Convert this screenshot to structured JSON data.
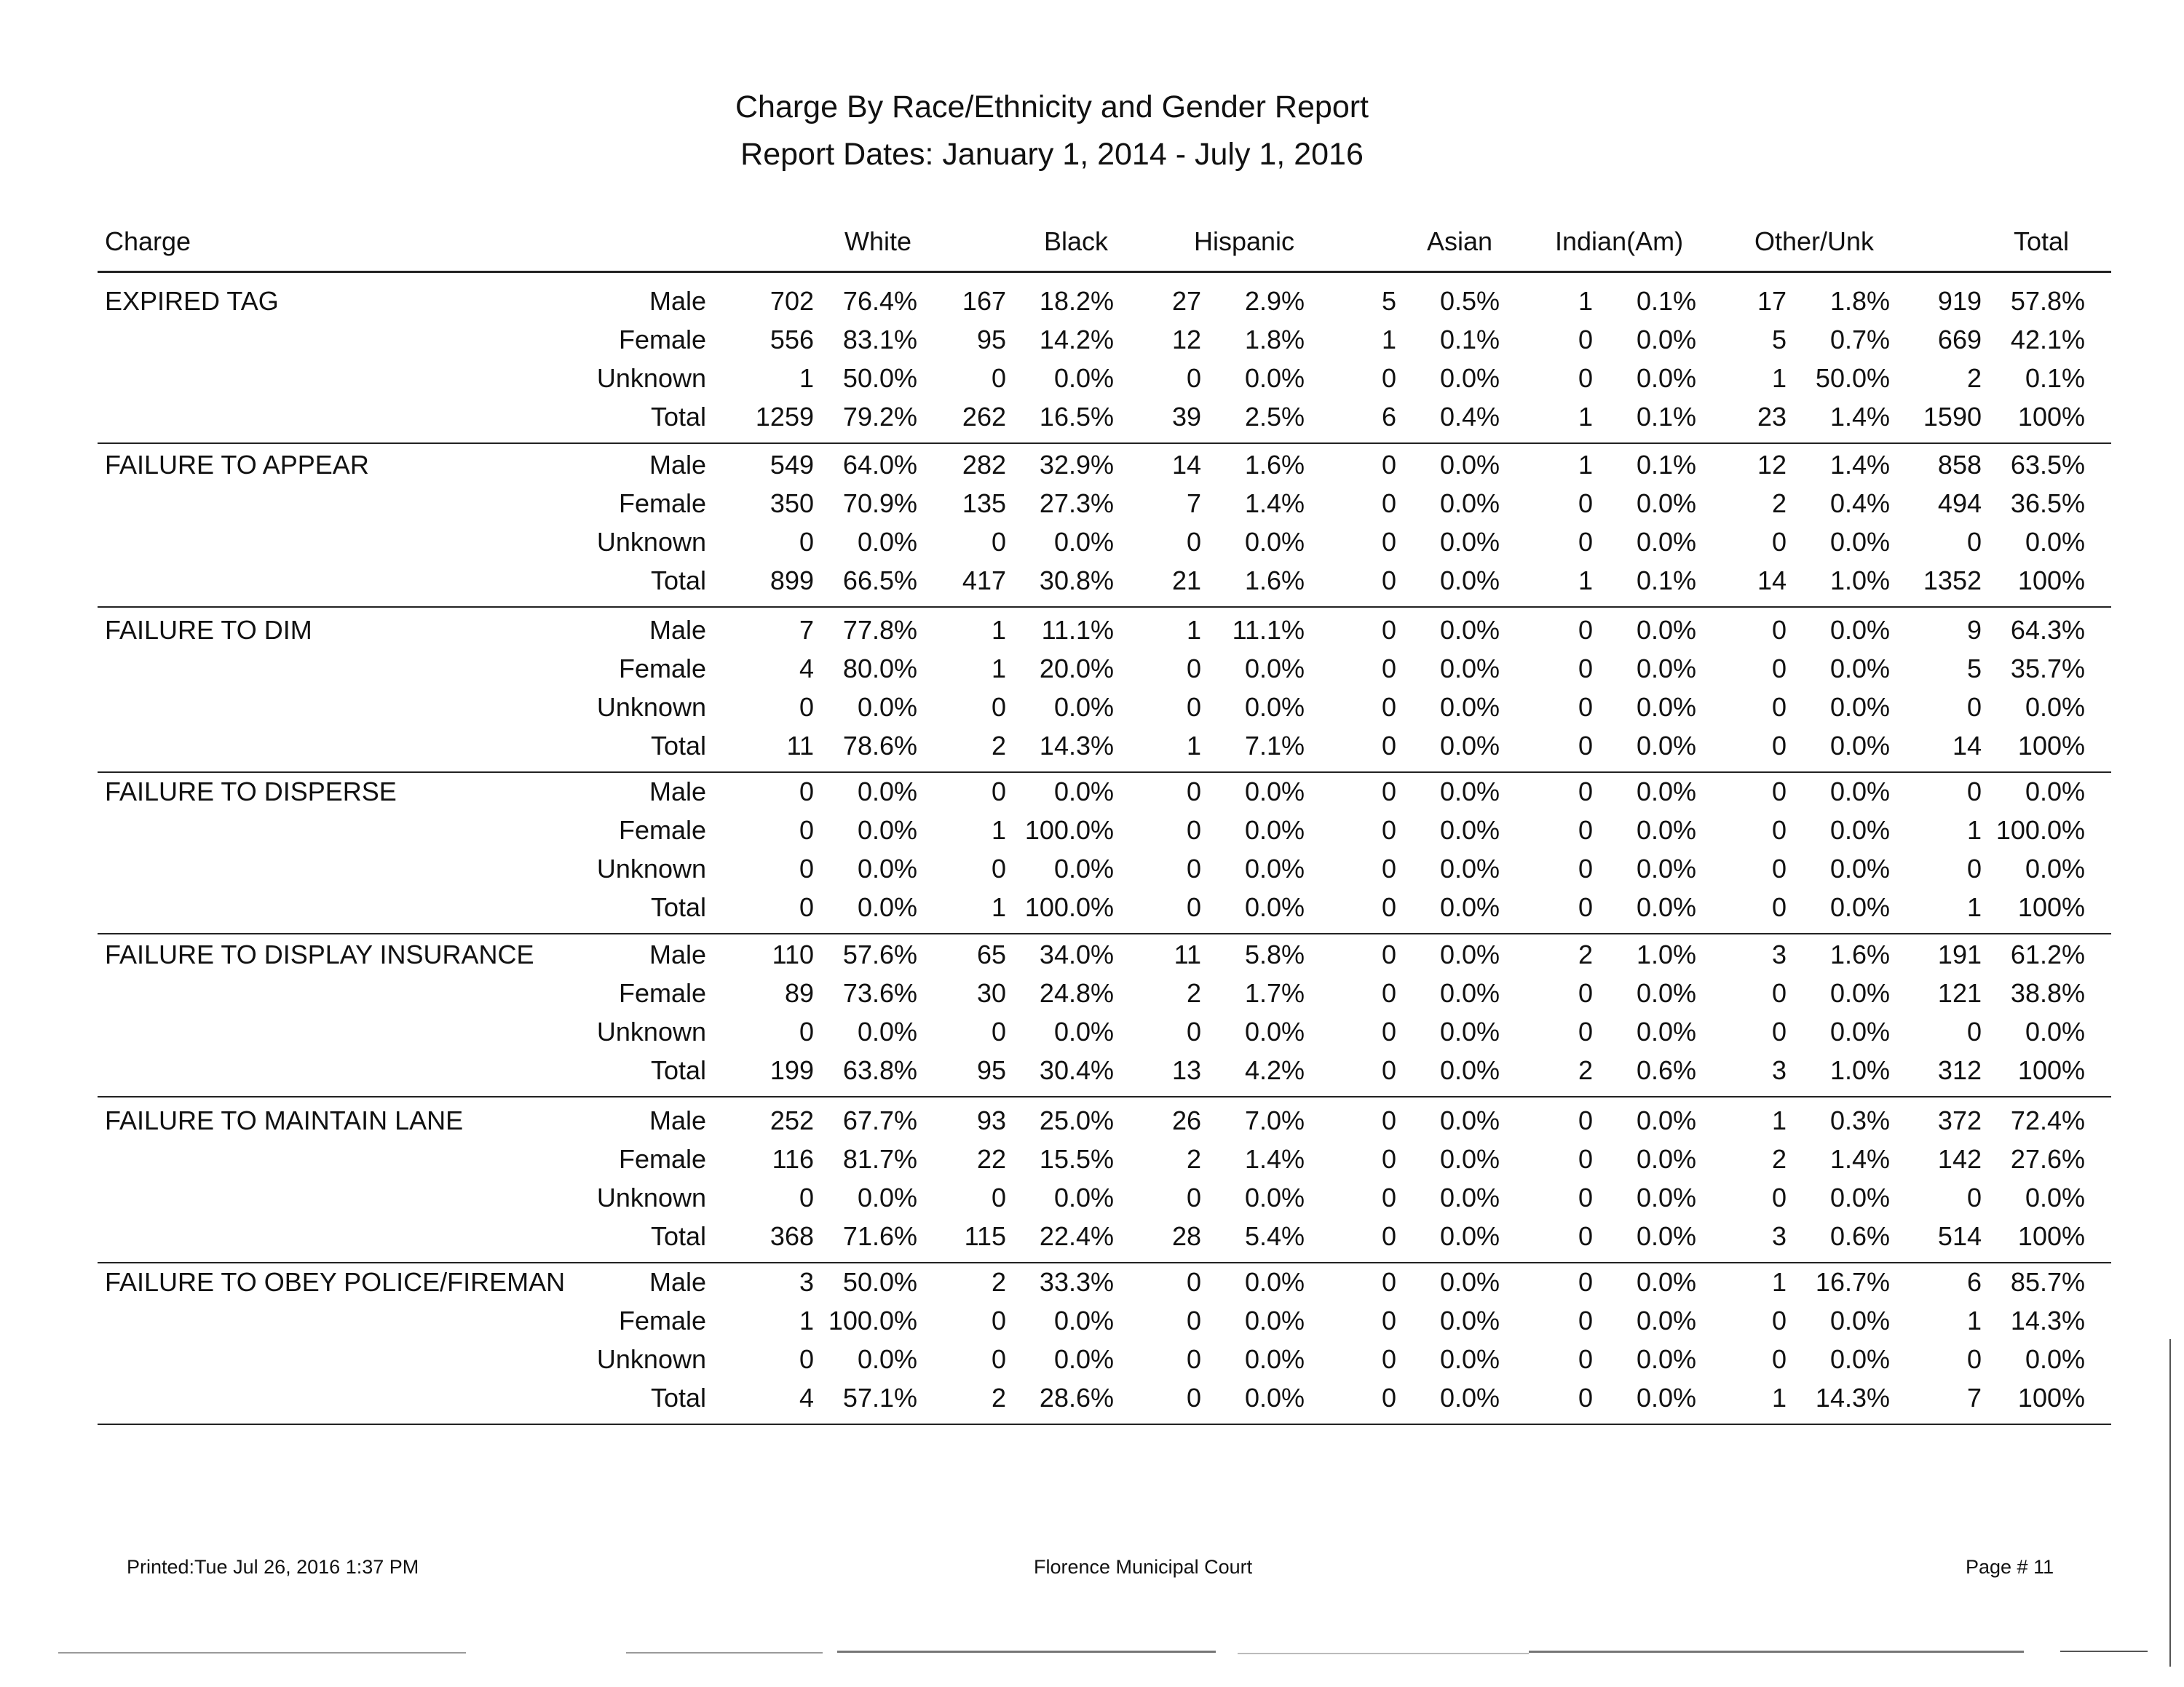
{
  "report": {
    "title": "Charge By Race/Ethnicity and Gender Report",
    "date_range": "Report Dates: January 1, 2014  -  July 1, 2016"
  },
  "columns": {
    "charge": "Charge",
    "white": "White",
    "black": "Black",
    "hispanic": "Hispanic",
    "asian": "Asian",
    "indian": "Indian(Am)",
    "other": "Other/Unk",
    "total": "Total"
  },
  "groups": [
    {
      "charge": "EXPIRED TAG",
      "rows": [
        {
          "gender": "Male",
          "cells": [
            "702",
            "76.4%",
            "167",
            "18.2%",
            "27",
            "2.9%",
            "5",
            "0.5%",
            "1",
            "0.1%",
            "17",
            "1.8%",
            "919",
            "57.8%"
          ]
        },
        {
          "gender": "Female",
          "cells": [
            "556",
            "83.1%",
            "95",
            "14.2%",
            "12",
            "1.8%",
            "1",
            "0.1%",
            "0",
            "0.0%",
            "5",
            "0.7%",
            "669",
            "42.1%"
          ]
        },
        {
          "gender": "Unknown",
          "cells": [
            "1",
            "50.0%",
            "0",
            "0.0%",
            "0",
            "0.0%",
            "0",
            "0.0%",
            "0",
            "0.0%",
            "1",
            "50.0%",
            "2",
            "0.1%"
          ]
        },
        {
          "gender": "Total",
          "cells": [
            "1259",
            "79.2%",
            "262",
            "16.5%",
            "39",
            "2.5%",
            "6",
            "0.4%",
            "1",
            "0.1%",
            "23",
            "1.4%",
            "1590",
            "100%"
          ]
        }
      ]
    },
    {
      "charge": "FAILURE TO APPEAR",
      "rows": [
        {
          "gender": "Male",
          "cells": [
            "549",
            "64.0%",
            "282",
            "32.9%",
            "14",
            "1.6%",
            "0",
            "0.0%",
            "1",
            "0.1%",
            "12",
            "1.4%",
            "858",
            "63.5%"
          ]
        },
        {
          "gender": "Female",
          "cells": [
            "350",
            "70.9%",
            "135",
            "27.3%",
            "7",
            "1.4%",
            "0",
            "0.0%",
            "0",
            "0.0%",
            "2",
            "0.4%",
            "494",
            "36.5%"
          ]
        },
        {
          "gender": "Unknown",
          "cells": [
            "0",
            "0.0%",
            "0",
            "0.0%",
            "0",
            "0.0%",
            "0",
            "0.0%",
            "0",
            "0.0%",
            "0",
            "0.0%",
            "0",
            "0.0%"
          ]
        },
        {
          "gender": "Total",
          "cells": [
            "899",
            "66.5%",
            "417",
            "30.8%",
            "21",
            "1.6%",
            "0",
            "0.0%",
            "1",
            "0.1%",
            "14",
            "1.0%",
            "1352",
            "100%"
          ]
        }
      ]
    },
    {
      "charge": "FAILURE TO DIM",
      "rows": [
        {
          "gender": "Male",
          "cells": [
            "7",
            "77.8%",
            "1",
            "11.1%",
            "1",
            "11.1%",
            "0",
            "0.0%",
            "0",
            "0.0%",
            "0",
            "0.0%",
            "9",
            "64.3%"
          ]
        },
        {
          "gender": "Female",
          "cells": [
            "4",
            "80.0%",
            "1",
            "20.0%",
            "0",
            "0.0%",
            "0",
            "0.0%",
            "0",
            "0.0%",
            "0",
            "0.0%",
            "5",
            "35.7%"
          ]
        },
        {
          "gender": "Unknown",
          "cells": [
            "0",
            "0.0%",
            "0",
            "0.0%",
            "0",
            "0.0%",
            "0",
            "0.0%",
            "0",
            "0.0%",
            "0",
            "0.0%",
            "0",
            "0.0%"
          ]
        },
        {
          "gender": "Total",
          "cells": [
            "11",
            "78.6%",
            "2",
            "14.3%",
            "1",
            "7.1%",
            "0",
            "0.0%",
            "0",
            "0.0%",
            "0",
            "0.0%",
            "14",
            "100%"
          ]
        }
      ]
    },
    {
      "charge": "FAILURE TO DISPERSE",
      "rows": [
        {
          "gender": "Male",
          "cells": [
            "0",
            "0.0%",
            "0",
            "0.0%",
            "0",
            "0.0%",
            "0",
            "0.0%",
            "0",
            "0.0%",
            "0",
            "0.0%",
            "0",
            "0.0%"
          ]
        },
        {
          "gender": "Female",
          "cells": [
            "0",
            "0.0%",
            "1",
            "100.0%",
            "0",
            "0.0%",
            "0",
            "0.0%",
            "0",
            "0.0%",
            "0",
            "0.0%",
            "1",
            "100.0%"
          ]
        },
        {
          "gender": "Unknown",
          "cells": [
            "0",
            "0.0%",
            "0",
            "0.0%",
            "0",
            "0.0%",
            "0",
            "0.0%",
            "0",
            "0.0%",
            "0",
            "0.0%",
            "0",
            "0.0%"
          ]
        },
        {
          "gender": "Total",
          "cells": [
            "0",
            "0.0%",
            "1",
            "100.0%",
            "0",
            "0.0%",
            "0",
            "0.0%",
            "0",
            "0.0%",
            "0",
            "0.0%",
            "1",
            "100%"
          ]
        }
      ]
    },
    {
      "charge": "FAILURE TO DISPLAY INSURANCE",
      "rows": [
        {
          "gender": "Male",
          "cells": [
            "110",
            "57.6%",
            "65",
            "34.0%",
            "11",
            "5.8%",
            "0",
            "0.0%",
            "2",
            "1.0%",
            "3",
            "1.6%",
            "191",
            "61.2%"
          ]
        },
        {
          "gender": "Female",
          "cells": [
            "89",
            "73.6%",
            "30",
            "24.8%",
            "2",
            "1.7%",
            "0",
            "0.0%",
            "0",
            "0.0%",
            "0",
            "0.0%",
            "121",
            "38.8%"
          ]
        },
        {
          "gender": "Unknown",
          "cells": [
            "0",
            "0.0%",
            "0",
            "0.0%",
            "0",
            "0.0%",
            "0",
            "0.0%",
            "0",
            "0.0%",
            "0",
            "0.0%",
            "0",
            "0.0%"
          ]
        },
        {
          "gender": "Total",
          "cells": [
            "199",
            "63.8%",
            "95",
            "30.4%",
            "13",
            "4.2%",
            "0",
            "0.0%",
            "2",
            "0.6%",
            "3",
            "1.0%",
            "312",
            "100%"
          ]
        }
      ]
    },
    {
      "charge": "FAILURE TO MAINTAIN LANE",
      "rows": [
        {
          "gender": "Male",
          "cells": [
            "252",
            "67.7%",
            "93",
            "25.0%",
            "26",
            "7.0%",
            "0",
            "0.0%",
            "0",
            "0.0%",
            "1",
            "0.3%",
            "372",
            "72.4%"
          ]
        },
        {
          "gender": "Female",
          "cells": [
            "116",
            "81.7%",
            "22",
            "15.5%",
            "2",
            "1.4%",
            "0",
            "0.0%",
            "0",
            "0.0%",
            "2",
            "1.4%",
            "142",
            "27.6%"
          ]
        },
        {
          "gender": "Unknown",
          "cells": [
            "0",
            "0.0%",
            "0",
            "0.0%",
            "0",
            "0.0%",
            "0",
            "0.0%",
            "0",
            "0.0%",
            "0",
            "0.0%",
            "0",
            "0.0%"
          ]
        },
        {
          "gender": "Total",
          "cells": [
            "368",
            "71.6%",
            "115",
            "22.4%",
            "28",
            "5.4%",
            "0",
            "0.0%",
            "0",
            "0.0%",
            "3",
            "0.6%",
            "514",
            "100%"
          ]
        }
      ]
    },
    {
      "charge": "FAILURE TO OBEY POLICE/FIREMAN",
      "rows": [
        {
          "gender": "Male",
          "cells": [
            "3",
            "50.0%",
            "2",
            "33.3%",
            "0",
            "0.0%",
            "0",
            "0.0%",
            "0",
            "0.0%",
            "1",
            "16.7%",
            "6",
            "85.7%"
          ]
        },
        {
          "gender": "Female",
          "cells": [
            "1",
            "100.0%",
            "0",
            "0.0%",
            "0",
            "0.0%",
            "0",
            "0.0%",
            "0",
            "0.0%",
            "0",
            "0.0%",
            "1",
            "14.3%"
          ]
        },
        {
          "gender": "Unknown",
          "cells": [
            "0",
            "0.0%",
            "0",
            "0.0%",
            "0",
            "0.0%",
            "0",
            "0.0%",
            "0",
            "0.0%",
            "0",
            "0.0%",
            "0",
            "0.0%"
          ]
        },
        {
          "gender": "Total",
          "cells": [
            "4",
            "57.1%",
            "2",
            "28.6%",
            "0",
            "0.0%",
            "0",
            "0.0%",
            "0",
            "0.0%",
            "1",
            "14.3%",
            "7",
            "100%"
          ]
        }
      ]
    }
  ],
  "footer": {
    "printed": "Printed:Tue Jul 26, 2016 1:37 PM",
    "court": "Florence Municipal Court",
    "page": "Page # 11"
  }
}
